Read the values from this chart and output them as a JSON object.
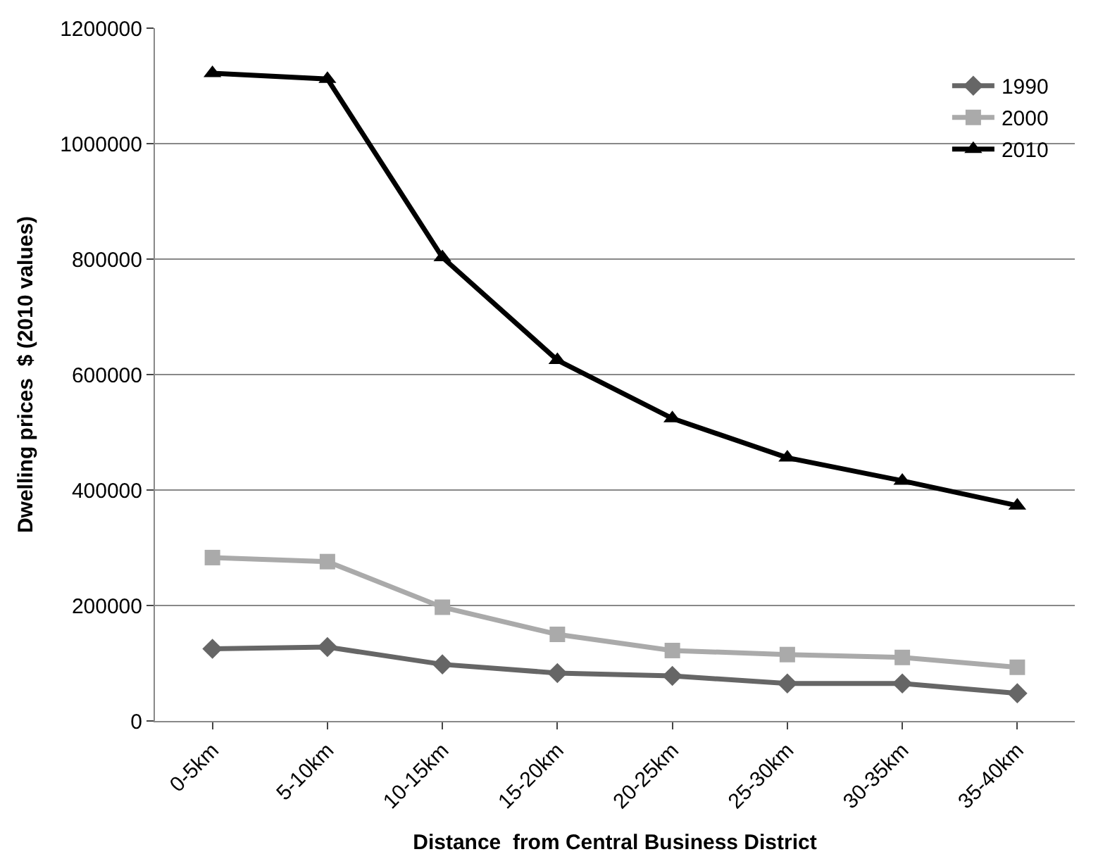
{
  "chart_data": {
    "type": "line",
    "xlabel": "Distance  from Central Business District",
    "ylabel": "Dwelling prices  $ (2010 values)",
    "categories": [
      "0-5km",
      "5-10km",
      "10-15km",
      "15-20km",
      "20-25km",
      "25-30km",
      "30-35km",
      "35-40km"
    ],
    "series": [
      {
        "name": "1990",
        "color": "#666666",
        "marker": "diamond",
        "values": [
          125000,
          128000,
          98000,
          83000,
          78000,
          65000,
          65000,
          48000
        ]
      },
      {
        "name": "2000",
        "color": "#aaaaaa",
        "marker": "square",
        "values": [
          283000,
          276000,
          197000,
          150000,
          122000,
          115000,
          110000,
          93000
        ]
      },
      {
        "name": "2010",
        "color": "#000000",
        "marker": "triangle",
        "values": [
          1122000,
          1112000,
          803000,
          625000,
          524000,
          456000,
          416000,
          373000
        ]
      }
    ],
    "ylim": [
      0,
      1200000
    ],
    "yticks": [
      0,
      200000,
      400000,
      600000,
      800000,
      1000000,
      1200000
    ],
    "grid": "y",
    "legend": "top right",
    "line_style": "solid"
  }
}
